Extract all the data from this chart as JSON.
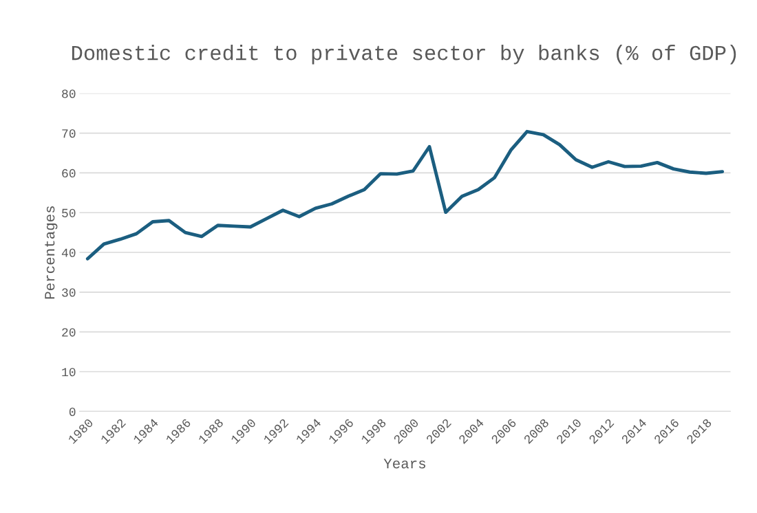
{
  "chart_data": {
    "type": "line",
    "title": "Domestic credit to private sector by banks (% of GDP)",
    "xlabel": "Years",
    "ylabel": "Percentages",
    "categories": [
      "1980",
      null,
      "1982",
      null,
      "1984",
      null,
      "1986",
      null,
      "1988",
      null,
      "1990",
      null,
      "1992",
      null,
      "1994",
      null,
      "1996",
      null,
      "1998",
      null,
      "2000",
      null,
      "2002",
      null,
      "2004",
      null,
      "2006",
      null,
      "2008",
      null,
      "2010",
      null,
      "2012",
      null,
      "2014",
      null,
      "2016",
      null,
      "2018",
      null
    ],
    "series": [
      {
        "color": "#1b5e80",
        "values": [
          38.4,
          42.1,
          43.3,
          44.7,
          47.7,
          48.0,
          45.0,
          44.0,
          46.8,
          46.6,
          46.4,
          48.5,
          50.6,
          49.0,
          51.1,
          52.2,
          54.1,
          55.8,
          59.8,
          59.7,
          60.5,
          66.6,
          50.1,
          54.1,
          55.8,
          58.8,
          65.7,
          70.4,
          69.6,
          67.1,
          63.3,
          61.4,
          62.8,
          61.6,
          61.7,
          62.6,
          61.0,
          60.2,
          59.9,
          60.3
        ]
      }
    ],
    "ylim": [
      0,
      80
    ],
    "yticks": [
      0,
      10,
      20,
      30,
      40,
      50,
      60,
      70,
      80
    ],
    "grid": "y",
    "marker": "none",
    "line_style": "solid"
  }
}
